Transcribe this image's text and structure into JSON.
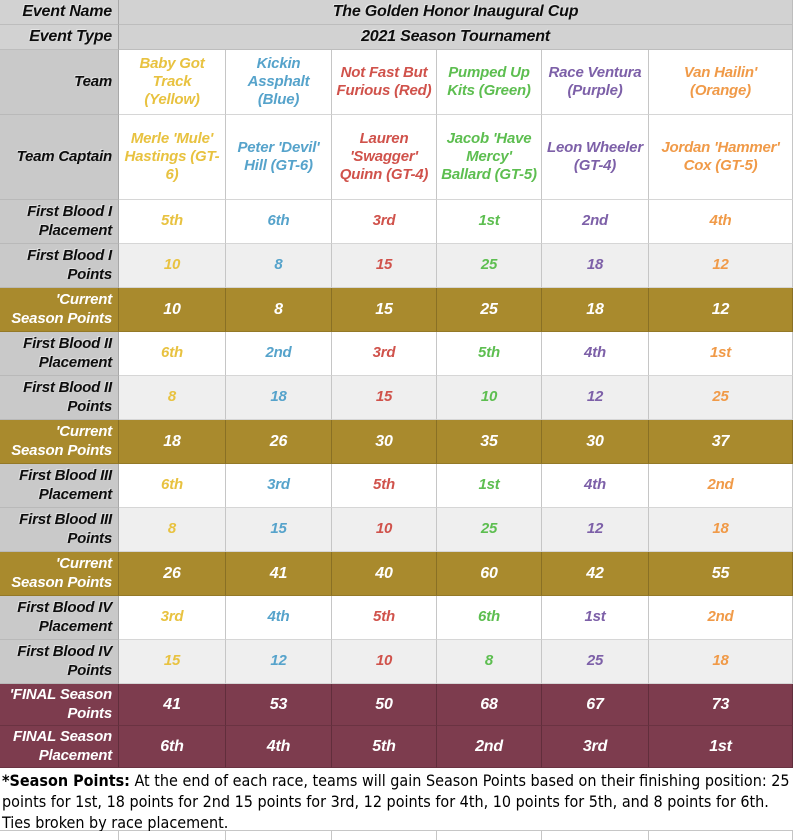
{
  "table": {
    "header_rows": [
      {
        "label": "Event Name",
        "value": "The Golden Honor Inaugural Cup"
      },
      {
        "label": "Event Type",
        "value": "2021 Season Tournament"
      }
    ],
    "team_row_label": "Team",
    "captain_row_label": "Team Captain",
    "teams": [
      {
        "name": "Baby Got Track (Yellow)",
        "captain": "Merle 'Mule' Hastings (GT-6)",
        "color": "#e8c240"
      },
      {
        "name": "Kickin Assphalt (Blue)",
        "captain": "Peter 'Devil' Hill (GT-6)",
        "color": "#56a3cb"
      },
      {
        "name": "Not Fast But Furious (Red)",
        "captain": "Lauren 'Swagger' Quinn (GT-4)",
        "color": "#d0524b"
      },
      {
        "name": "Pumped Up Kits (Green)",
        "captain": "Jacob 'Have Mercy' Ballard (GT-5)",
        "color": "#5dbe50"
      },
      {
        "name": "Race Ventura (Purple)",
        "captain": "Leon Wheeler (GT-4)",
        "color": "#7d60a8"
      },
      {
        "name": "Van Hailin' (Orange)",
        "captain": "Jordan 'Hammer' Cox (GT-5)",
        "color": "#f09a48"
      }
    ],
    "score_rows": [
      {
        "label": "First Blood I Placement",
        "style": "placement",
        "values": [
          "5th",
          "6th",
          "3rd",
          "1st",
          "2nd",
          "4th"
        ]
      },
      {
        "label": "First Blood I Points",
        "style": "points",
        "values": [
          "10",
          "8",
          "15",
          "25",
          "18",
          "12"
        ]
      },
      {
        "label": "'Current Season Points",
        "style": "current",
        "values": [
          "10",
          "8",
          "15",
          "25",
          "18",
          "12"
        ]
      },
      {
        "label": "First Blood II Placement",
        "style": "placement",
        "values": [
          "6th",
          "2nd",
          "3rd",
          "5th",
          "4th",
          "1st"
        ]
      },
      {
        "label": "First Blood II Points",
        "style": "points",
        "values": [
          "8",
          "18",
          "15",
          "10",
          "12",
          "25"
        ]
      },
      {
        "label": "'Current Season Points",
        "style": "current",
        "values": [
          "18",
          "26",
          "30",
          "35",
          "30",
          "37"
        ]
      },
      {
        "label": "First Blood III Placement",
        "style": "placement",
        "values": [
          "6th",
          "3rd",
          "5th",
          "1st",
          "4th",
          "2nd"
        ]
      },
      {
        "label": "First Blood III Points",
        "style": "points",
        "values": [
          "8",
          "15",
          "10",
          "25",
          "12",
          "18"
        ]
      },
      {
        "label": "'Current Season Points",
        "style": "current",
        "values": [
          "26",
          "41",
          "40",
          "60",
          "42",
          "55"
        ]
      },
      {
        "label": "First Blood IV Placement",
        "style": "placement",
        "values": [
          "3rd",
          "4th",
          "5th",
          "6th",
          "1st",
          "2nd"
        ]
      },
      {
        "label": "First Blood IV Points",
        "style": "points",
        "values": [
          "15",
          "12",
          "10",
          "8",
          "25",
          "18"
        ]
      },
      {
        "label": "'FINAL Season Points",
        "style": "final",
        "values": [
          "41",
          "53",
          "50",
          "68",
          "67",
          "73"
        ]
      },
      {
        "label": "FINAL Season Placement",
        "style": "final",
        "values": [
          "6th",
          "4th",
          "5th",
          "2nd",
          "3rd",
          "1st"
        ]
      }
    ]
  },
  "footnote": {
    "bold": "*Season Points:",
    "text": " At the end of each race, teams will gain Season Points based on their finishing position: 25 points for 1st, 18 points for 2nd 15 points for 3rd, 12 points for 4th, 10 points for 5th, and 8 points for 6th. Ties broken by race placement."
  },
  "colors": {
    "header_bg": "#d2d2d2",
    "label_bg": "#c9c9c9",
    "alt_row_bg": "#efefef",
    "current_row_bg": "#a98a2d",
    "final_row_bg": "#7d3c4e",
    "grid_line": "#c6c6c6"
  }
}
